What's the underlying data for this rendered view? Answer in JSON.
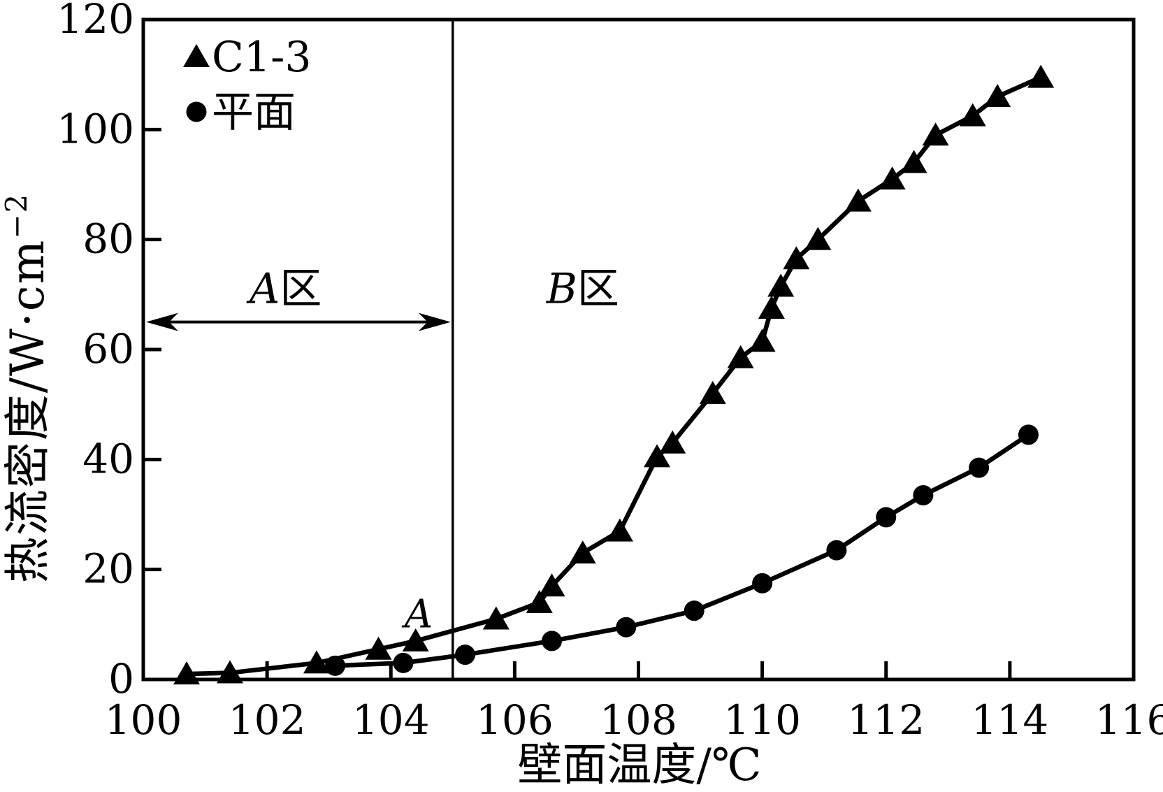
{
  "chart_data": {
    "type": "line",
    "title": "",
    "xlabel": "壁面温度/℃",
    "ylabel": "热流密度/W·cm⁻²",
    "ylabel_rich": {
      "main": "热流密度/W·cm",
      "sup": "−2"
    },
    "xlim": [
      100,
      116
    ],
    "ylim": [
      0,
      120
    ],
    "x_ticks": [
      100,
      102,
      104,
      106,
      108,
      110,
      112,
      114,
      116
    ],
    "y_ticks": [
      0,
      20,
      40,
      60,
      80,
      100,
      120
    ],
    "grid": false,
    "legend_position": "top-left",
    "series": [
      {
        "id": "c1-3",
        "name": "C1-3",
        "marker": "triangle",
        "x": [
          100.7,
          101.4,
          102.8,
          103.8,
          104.4,
          105.7,
          106.4,
          106.6,
          107.1,
          107.7,
          108.3,
          108.55,
          109.2,
          109.65,
          110.0,
          110.15,
          110.3,
          110.55,
          110.9,
          111.55,
          112.1,
          112.45,
          112.8,
          113.4,
          113.8,
          114.5
        ],
        "y": [
          1,
          1.2,
          3,
          5.5,
          7,
          11,
          14,
          17,
          23,
          27,
          40.5,
          43,
          52,
          58.5,
          61.5,
          67.5,
          71.5,
          76.5,
          80,
          87,
          91,
          94,
          99,
          102.5,
          106,
          109.5
        ]
      },
      {
        "id": "plane",
        "name": "平面",
        "marker": "circle",
        "x": [
          103.1,
          104.2,
          105.2,
          106.6,
          107.8,
          108.9,
          110.0,
          111.2,
          112.0,
          112.6,
          113.5,
          114.3
        ],
        "y": [
          2.5,
          3,
          4.5,
          7,
          9.5,
          12.5,
          17.5,
          23.5,
          29.5,
          33.5,
          38.5,
          44.5
        ]
      }
    ],
    "annotations": {
      "region_divider_x": 105,
      "region_a_label": "A区",
      "region_a_pos": {
        "x": 102.3,
        "y": 71
      },
      "region_b_label": "B区",
      "region_b_pos": {
        "x": 107.1,
        "y": 71
      },
      "extent_arrow": {
        "from_x": 100,
        "to_x": 105,
        "y": 65
      },
      "point_label": "A",
      "point_label_pos": {
        "x": 104.45,
        "y": 12
      }
    },
    "colors": {
      "foreground": "#000000",
      "background": "#ffffff"
    }
  }
}
